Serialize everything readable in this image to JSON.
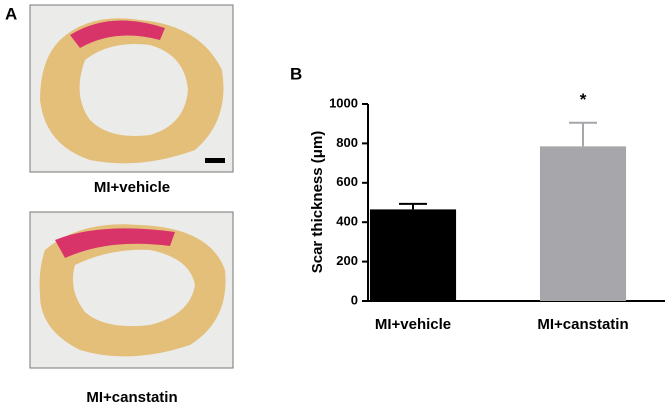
{
  "panel_a": {
    "label": "A",
    "captions": [
      "MI+vehicle",
      "MI+canstatin"
    ]
  },
  "chart_data": {
    "type": "bar",
    "panel_label": "B",
    "ylabel": "Scar thickness (μm)",
    "categories": [
      "MI+vehicle",
      "MI+canstatin"
    ],
    "values": [
      465,
      785
    ],
    "errors": [
      28,
      120
    ],
    "colors": [
      "#000000",
      "#a6a6ab"
    ],
    "significance_marks": [
      null,
      "*"
    ],
    "ylim": [
      0,
      1000
    ],
    "yticks": [
      0,
      200,
      400,
      600,
      800,
      1000
    ]
  }
}
